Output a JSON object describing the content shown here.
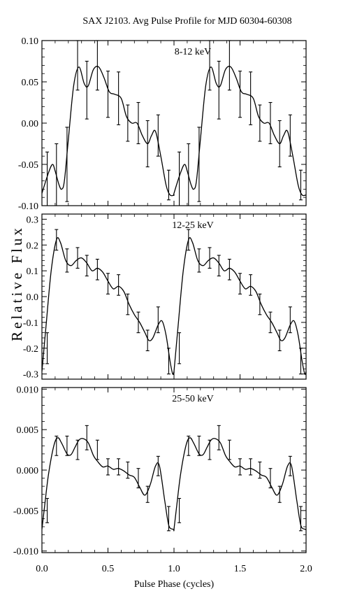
{
  "title": "SAX J2103. Avg Pulse Profile for MJD 60304-60308",
  "xlabel": "Pulse Phase (cycles)",
  "ylabel": "Relative Flux",
  "chart_data": [
    {
      "type": "line",
      "panel_label": "8-12 keV",
      "xlim": [
        0.0,
        2.0
      ],
      "ylim": [
        -0.1,
        0.1
      ],
      "yticks": [
        -0.1,
        -0.05,
        0.0,
        0.05,
        0.1
      ],
      "ytick_labels": [
        "-0.10",
        "-0.05",
        "0.00",
        "0.05",
        "0.10"
      ],
      "xticks": [
        0.0,
        0.5,
        1.0,
        1.5,
        2.0
      ],
      "xtick_labels": [],
      "curve": {
        "x": [
          0.0,
          0.05,
          0.08,
          0.1,
          0.13,
          0.15,
          0.17,
          0.2,
          0.24,
          0.28,
          0.32,
          0.35,
          0.39,
          0.43,
          0.47,
          0.51,
          0.55,
          0.6,
          0.64,
          0.68,
          0.72,
          0.76,
          0.8,
          0.83,
          0.86,
          0.9,
          0.94,
          0.97,
          1.0
        ],
        "y": [
          -0.085,
          -0.06,
          -0.05,
          -0.058,
          -0.075,
          -0.08,
          -0.07,
          -0.02,
          0.045,
          0.068,
          0.048,
          0.045,
          0.065,
          0.068,
          0.055,
          0.038,
          0.035,
          0.03,
          0.008,
          0.0,
          0.0,
          -0.015,
          -0.025,
          -0.015,
          -0.01,
          -0.04,
          -0.075,
          -0.087,
          -0.087
        ]
      },
      "errorbars": {
        "x": [
          0.04,
          0.11,
          0.19,
          0.27,
          0.34,
          0.42,
          0.5,
          0.58,
          0.65,
          0.73,
          0.8,
          0.88,
          0.96
        ],
        "y": [
          -0.07,
          -0.065,
          -0.05,
          0.07,
          0.04,
          0.07,
          0.035,
          0.03,
          0.0,
          0.0,
          -0.025,
          -0.015,
          -0.075
        ],
        "err": [
          0.035,
          0.04,
          0.045,
          0.03,
          0.035,
          0.03,
          0.028,
          0.032,
          0.022,
          0.025,
          0.028,
          0.025,
          0.018
        ]
      }
    },
    {
      "type": "line",
      "panel_label": "12-25 keV",
      "xlim": [
        0.0,
        2.0
      ],
      "ylim": [
        -0.32,
        0.32
      ],
      "yticks": [
        -0.3,
        -0.2,
        -0.1,
        0.0,
        0.1,
        0.2,
        0.3
      ],
      "ytick_labels": [
        "-0.3",
        "-0.2",
        "-0.1",
        "0.0",
        "0.1",
        "0.2",
        "0.3"
      ],
      "xticks": [
        0.0,
        0.5,
        1.0,
        1.5,
        2.0
      ],
      "xtick_labels": [],
      "curve": {
        "x": [
          0.0,
          0.03,
          0.07,
          0.11,
          0.14,
          0.18,
          0.22,
          0.26,
          0.3,
          0.34,
          0.38,
          0.42,
          0.46,
          0.5,
          0.54,
          0.58,
          0.62,
          0.66,
          0.7,
          0.74,
          0.78,
          0.81,
          0.84,
          0.88,
          0.91,
          0.94,
          0.97,
          0.99,
          1.0
        ],
        "y": [
          -0.29,
          -0.12,
          0.1,
          0.22,
          0.21,
          0.14,
          0.12,
          0.14,
          0.15,
          0.13,
          0.1,
          0.11,
          0.095,
          0.06,
          0.03,
          0.04,
          0.02,
          -0.03,
          -0.07,
          -0.1,
          -0.14,
          -0.17,
          -0.16,
          -0.11,
          -0.095,
          -0.15,
          -0.25,
          -0.3,
          -0.29
        ]
      },
      "errorbars": {
        "x": [
          0.04,
          0.11,
          0.19,
          0.27,
          0.34,
          0.42,
          0.5,
          0.58,
          0.65,
          0.73,
          0.8,
          0.88,
          0.96
        ],
        "y": [
          -0.2,
          0.22,
          0.14,
          0.15,
          0.12,
          0.105,
          0.05,
          0.045,
          -0.03,
          -0.1,
          -0.17,
          -0.09,
          -0.25
        ],
        "err": [
          0.06,
          0.04,
          0.045,
          0.04,
          0.04,
          0.04,
          0.04,
          0.04,
          0.04,
          0.04,
          0.04,
          0.05,
          0.05
        ]
      }
    },
    {
      "type": "line",
      "panel_label": "25-50 keV",
      "xlim": [
        0.0,
        2.0
      ],
      "ylim": [
        -0.0102,
        0.0102
      ],
      "yticks": [
        -0.01,
        -0.005,
        0.0,
        0.005,
        0.01
      ],
      "ytick_labels": [
        "-0.010",
        "-0.005",
        "0.000",
        "0.005",
        "0.010"
      ],
      "xticks": [
        0.0,
        0.5,
        1.0,
        1.5,
        2.0
      ],
      "xtick_labels": [
        "0.0",
        "0.5",
        "1.0",
        "1.5",
        "2.0"
      ],
      "curve": {
        "x": [
          0.0,
          0.02,
          0.05,
          0.09,
          0.12,
          0.15,
          0.19,
          0.22,
          0.25,
          0.28,
          0.31,
          0.35,
          0.39,
          0.42,
          0.46,
          0.5,
          0.54,
          0.58,
          0.62,
          0.66,
          0.7,
          0.74,
          0.78,
          0.82,
          0.86,
          0.89,
          0.93,
          0.96,
          0.99,
          1.0
        ],
        "y": [
          -0.0073,
          -0.0045,
          -0.0005,
          0.003,
          0.004,
          0.0033,
          0.002,
          0.0019,
          0.0028,
          0.0037,
          0.0039,
          0.0034,
          0.0018,
          0.0011,
          0.0004,
          0.0005,
          0.0001,
          0.0002,
          -0.0001,
          -0.0006,
          -0.0009,
          -0.0021,
          -0.0031,
          -0.0018,
          0.0005,
          0.0005,
          -0.0038,
          -0.0068,
          -0.0073,
          -0.0073
        ]
      },
      "errorbars": {
        "x": [
          0.04,
          0.11,
          0.19,
          0.27,
          0.34,
          0.42,
          0.5,
          0.58,
          0.65,
          0.73,
          0.8,
          0.88,
          0.96
        ],
        "y": [
          -0.005,
          0.003,
          0.003,
          0.0025,
          0.004,
          0.0025,
          0.0004,
          0.0004,
          0.0,
          -0.001,
          -0.003,
          0.0005,
          -0.006
        ],
        "err": [
          0.0015,
          0.0012,
          0.0012,
          0.0012,
          0.0015,
          0.0012,
          0.001,
          0.001,
          0.001,
          0.0012,
          0.001,
          0.0012,
          0.0015
        ]
      }
    }
  ]
}
